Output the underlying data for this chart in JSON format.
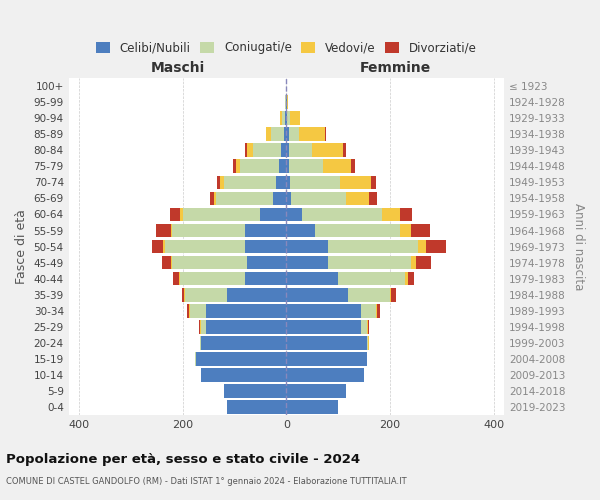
{
  "age_groups": [
    "0-4",
    "5-9",
    "10-14",
    "15-19",
    "20-24",
    "25-29",
    "30-34",
    "35-39",
    "40-44",
    "45-49",
    "50-54",
    "55-59",
    "60-64",
    "65-69",
    "70-74",
    "75-79",
    "80-84",
    "85-89",
    "90-94",
    "95-99",
    "100+"
  ],
  "birth_years": [
    "2019-2023",
    "2014-2018",
    "2009-2013",
    "2004-2008",
    "1999-2003",
    "1994-1998",
    "1989-1993",
    "1984-1988",
    "1979-1983",
    "1974-1978",
    "1969-1973",
    "1964-1968",
    "1959-1963",
    "1954-1958",
    "1949-1953",
    "1944-1948",
    "1939-1943",
    "1934-1938",
    "1929-1933",
    "1924-1928",
    "≤ 1923"
  ],
  "maschi": {
    "celibi": [
      115,
      120,
      165,
      175,
      165,
      155,
      155,
      115,
      80,
      75,
      80,
      80,
      50,
      25,
      20,
      15,
      10,
      5,
      3,
      1,
      0
    ],
    "coniugati": [
      0,
      0,
      0,
      1,
      2,
      10,
      30,
      80,
      125,
      145,
      155,
      140,
      150,
      110,
      100,
      75,
      55,
      25,
      5,
      1,
      0
    ],
    "vedovi": [
      0,
      0,
      0,
      0,
      0,
      2,
      2,
      2,
      2,
      2,
      3,
      3,
      5,
      5,
      8,
      8,
      10,
      10,
      5,
      0,
      0
    ],
    "divorziati": [
      0,
      0,
      0,
      0,
      0,
      2,
      5,
      5,
      12,
      18,
      22,
      28,
      20,
      8,
      5,
      5,
      5,
      0,
      0,
      0,
      0
    ]
  },
  "femmine": {
    "nubili": [
      100,
      115,
      150,
      155,
      155,
      145,
      145,
      120,
      100,
      80,
      80,
      55,
      30,
      10,
      8,
      5,
      5,
      5,
      2,
      1,
      0
    ],
    "coniugate": [
      0,
      0,
      0,
      0,
      2,
      10,
      28,
      80,
      130,
      160,
      175,
      165,
      155,
      105,
      95,
      65,
      45,
      20,
      5,
      0,
      0
    ],
    "vedove": [
      0,
      0,
      0,
      0,
      2,
      2,
      2,
      3,
      5,
      10,
      15,
      20,
      35,
      45,
      60,
      55,
      60,
      50,
      20,
      2,
      0
    ],
    "divorziate": [
      0,
      0,
      0,
      0,
      0,
      3,
      5,
      8,
      12,
      30,
      38,
      38,
      22,
      15,
      10,
      8,
      5,
      2,
      0,
      0,
      0
    ]
  },
  "colors": {
    "celibi_nubili": "#4d7ebf",
    "coniugati": "#c5d9a8",
    "vedovi": "#f5c842",
    "divorziati": "#c0392b"
  },
  "xlim": 420,
  "title": "Popolazione per età, sesso e stato civile - 2024",
  "subtitle": "COMUNE DI CASTEL GANDOLFO (RM) - Dati ISTAT 1° gennaio 2024 - Elaborazione TUTTITALIA.IT",
  "ylabel_left": "Fasce di età",
  "ylabel_right": "Anni di nascita",
  "xlabel_left": "Maschi",
  "xlabel_right": "Femmine",
  "bg_color": "#f0f0f0",
  "plot_bg": "#ffffff"
}
